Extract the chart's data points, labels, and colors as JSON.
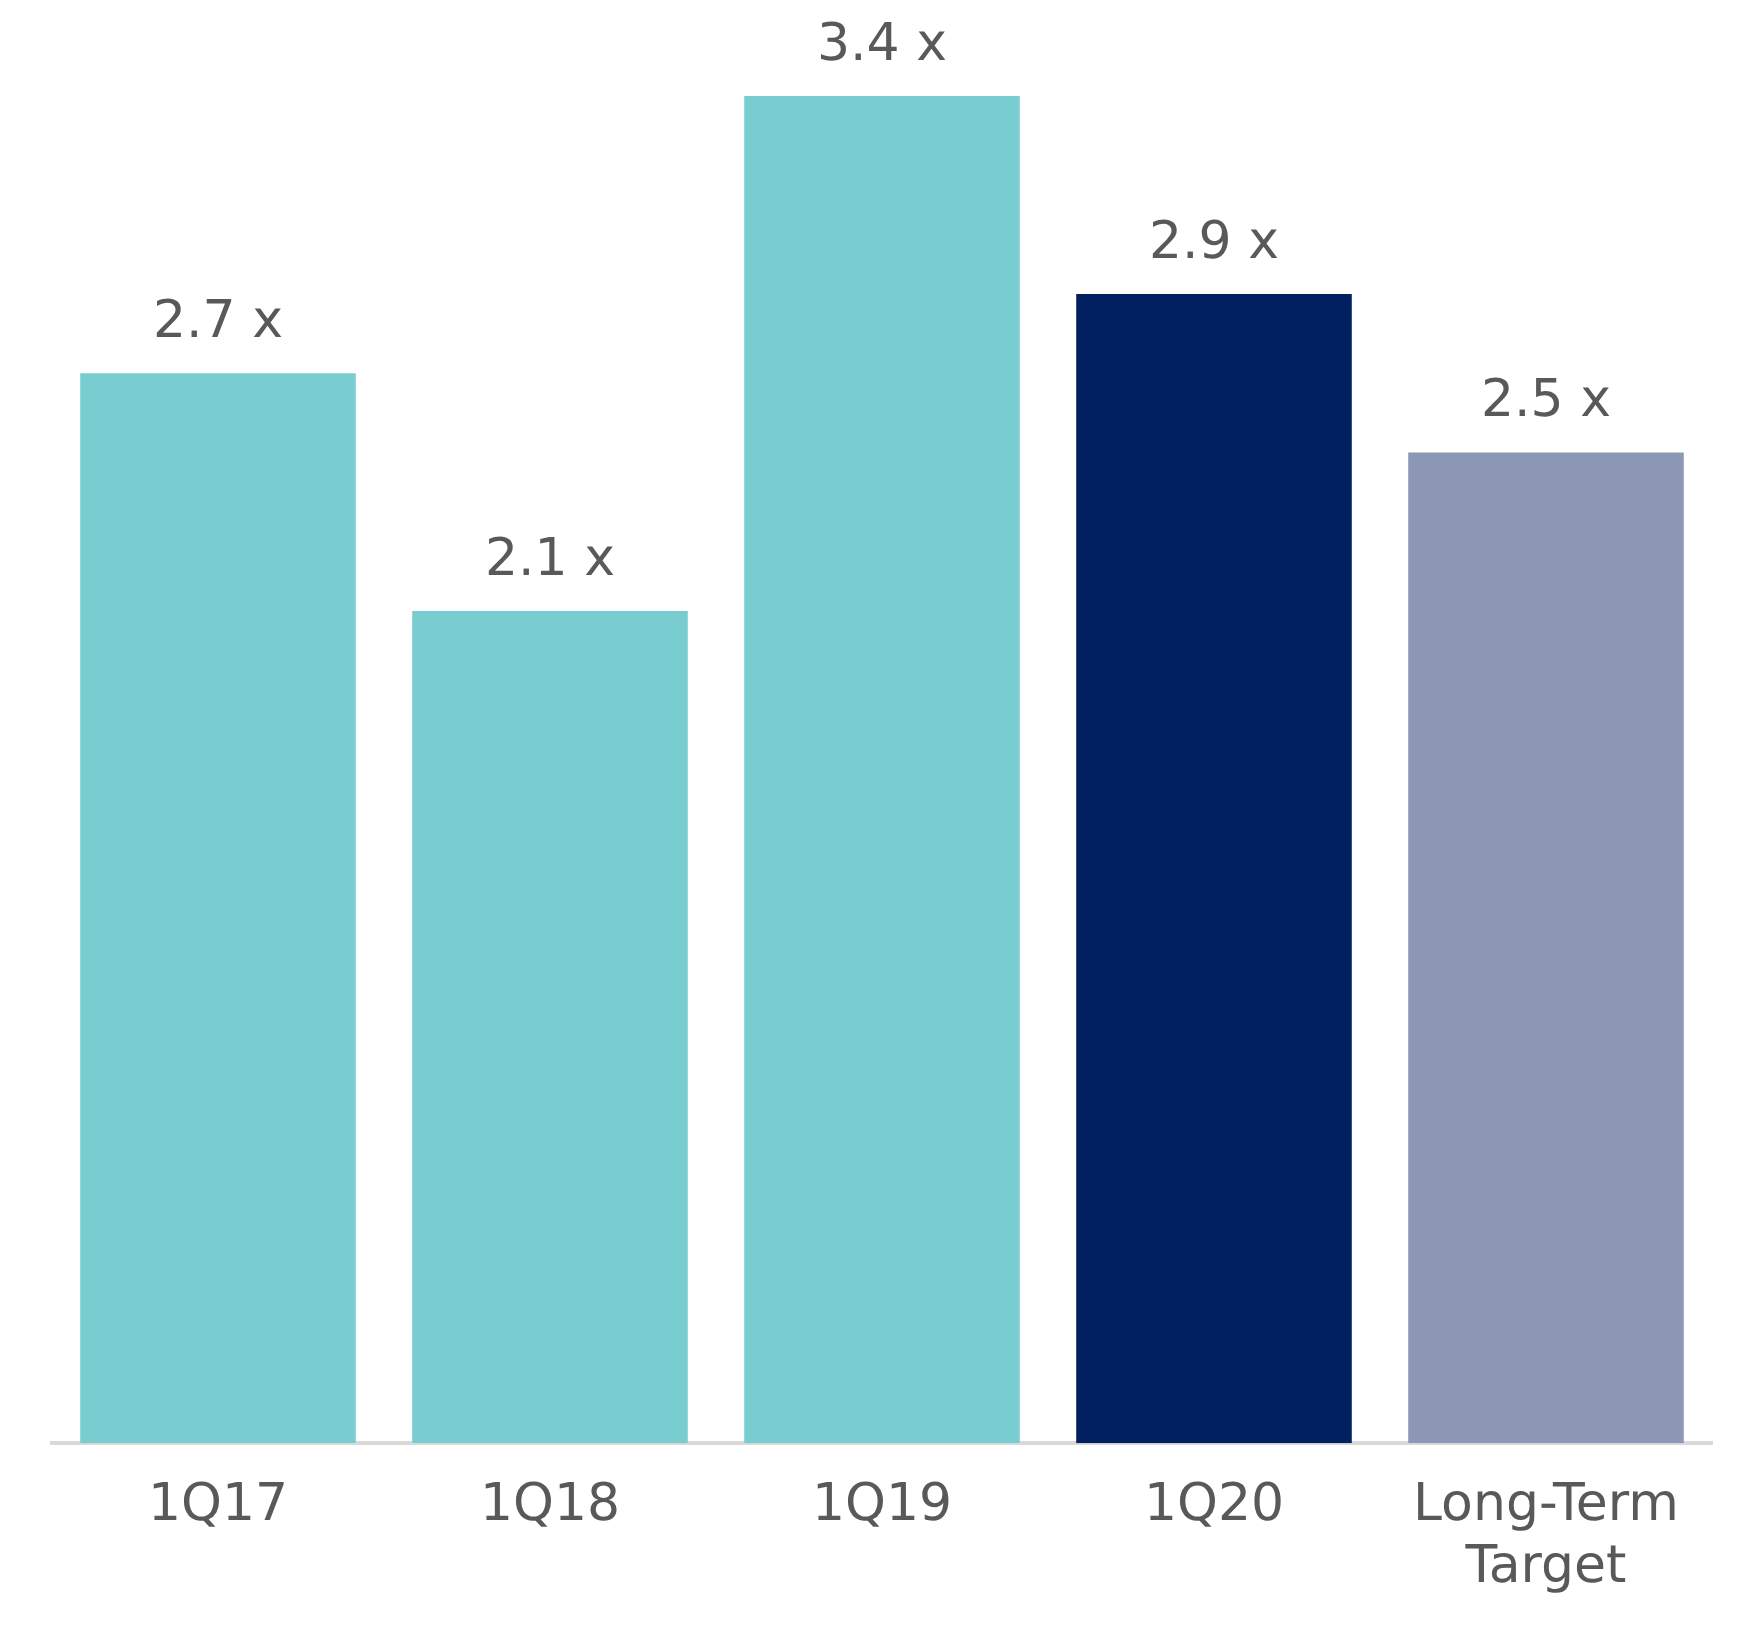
{
  "chart_data": {
    "type": "bar",
    "categories": [
      "1Q17",
      "1Q18",
      "1Q19",
      "1Q20",
      "Long-Term Target"
    ],
    "values": [
      2.7,
      2.1,
      3.4,
      2.9,
      2.5
    ],
    "colors": [
      "#79cdd0",
      "#79cdd0",
      "#79cdd0",
      "#002060",
      "#8c98b5"
    ],
    "value_labels": [
      "2.7 x",
      "2.1 x",
      "3.4 x",
      "2.9 x",
      "2.5 x"
    ],
    "relative": false,
    "grid": false,
    "legend": false
  }
}
